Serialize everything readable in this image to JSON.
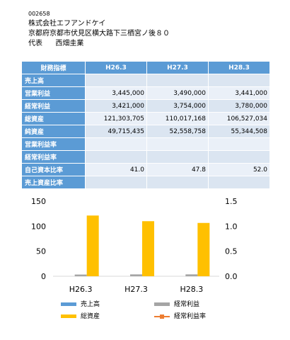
{
  "company": {
    "code": "002658",
    "name": "株式会社エフアンドケイ",
    "address": "京都府京都市伏見区横大路下三栖宮ノ後８０",
    "representative_label": "代表",
    "representative_name": "西畑圭業"
  },
  "table": {
    "header": [
      "財務指標",
      "H26.3",
      "H27.3",
      "H28.3"
    ],
    "rows": [
      {
        "label": "売上高",
        "values": [
          "",
          "",
          ""
        ]
      },
      {
        "label": "営業利益",
        "values": [
          "3,445,000",
          "3,490,000",
          "3,441,000"
        ]
      },
      {
        "label": "経常利益",
        "values": [
          "3,421,000",
          "3,754,000",
          "3,780,000"
        ]
      },
      {
        "label": "総資産",
        "values": [
          "121,303,705",
          "110,017,168",
          "106,527,034"
        ]
      },
      {
        "label": "純資産",
        "values": [
          "49,715,435",
          "52,558,758",
          "55,344,508"
        ]
      },
      {
        "label": "営業利益率",
        "values": [
          "",
          "",
          ""
        ]
      },
      {
        "label": "経常利益率",
        "values": [
          "",
          "",
          ""
        ]
      },
      {
        "label": "自己資本比率",
        "values": [
          "41.0",
          "47.8",
          "52.0"
        ]
      },
      {
        "label": "売上資産比率",
        "values": [
          "",
          "",
          ""
        ]
      }
    ]
  },
  "chart_data": {
    "type": "bar",
    "categories": [
      "H26.3",
      "H27.3",
      "H28.3"
    ],
    "ylim": [
      0,
      150
    ],
    "y2lim": [
      0,
      1.5
    ],
    "yticks": [
      "0",
      "50",
      "100",
      "150"
    ],
    "y2ticks": [
      "0.0",
      "0.5",
      "1.0",
      "1.5"
    ],
    "series": [
      {
        "name": "売上高",
        "values": [
          0,
          0,
          0
        ],
        "color": "#5b9bd5",
        "kind": "bar"
      },
      {
        "name": "経常利益",
        "values": [
          3.421,
          3.754,
          3.78
        ],
        "color": "#a5a5a5",
        "kind": "bar"
      },
      {
        "name": "総資産",
        "values": [
          121.3,
          110.0,
          106.5
        ],
        "color": "#ffc000",
        "kind": "bar"
      },
      {
        "name": "経常利益率",
        "values": [
          null,
          null,
          null
        ],
        "color": "#ed7d31",
        "kind": "line"
      }
    ],
    "grid": false,
    "legend": "bottom"
  }
}
